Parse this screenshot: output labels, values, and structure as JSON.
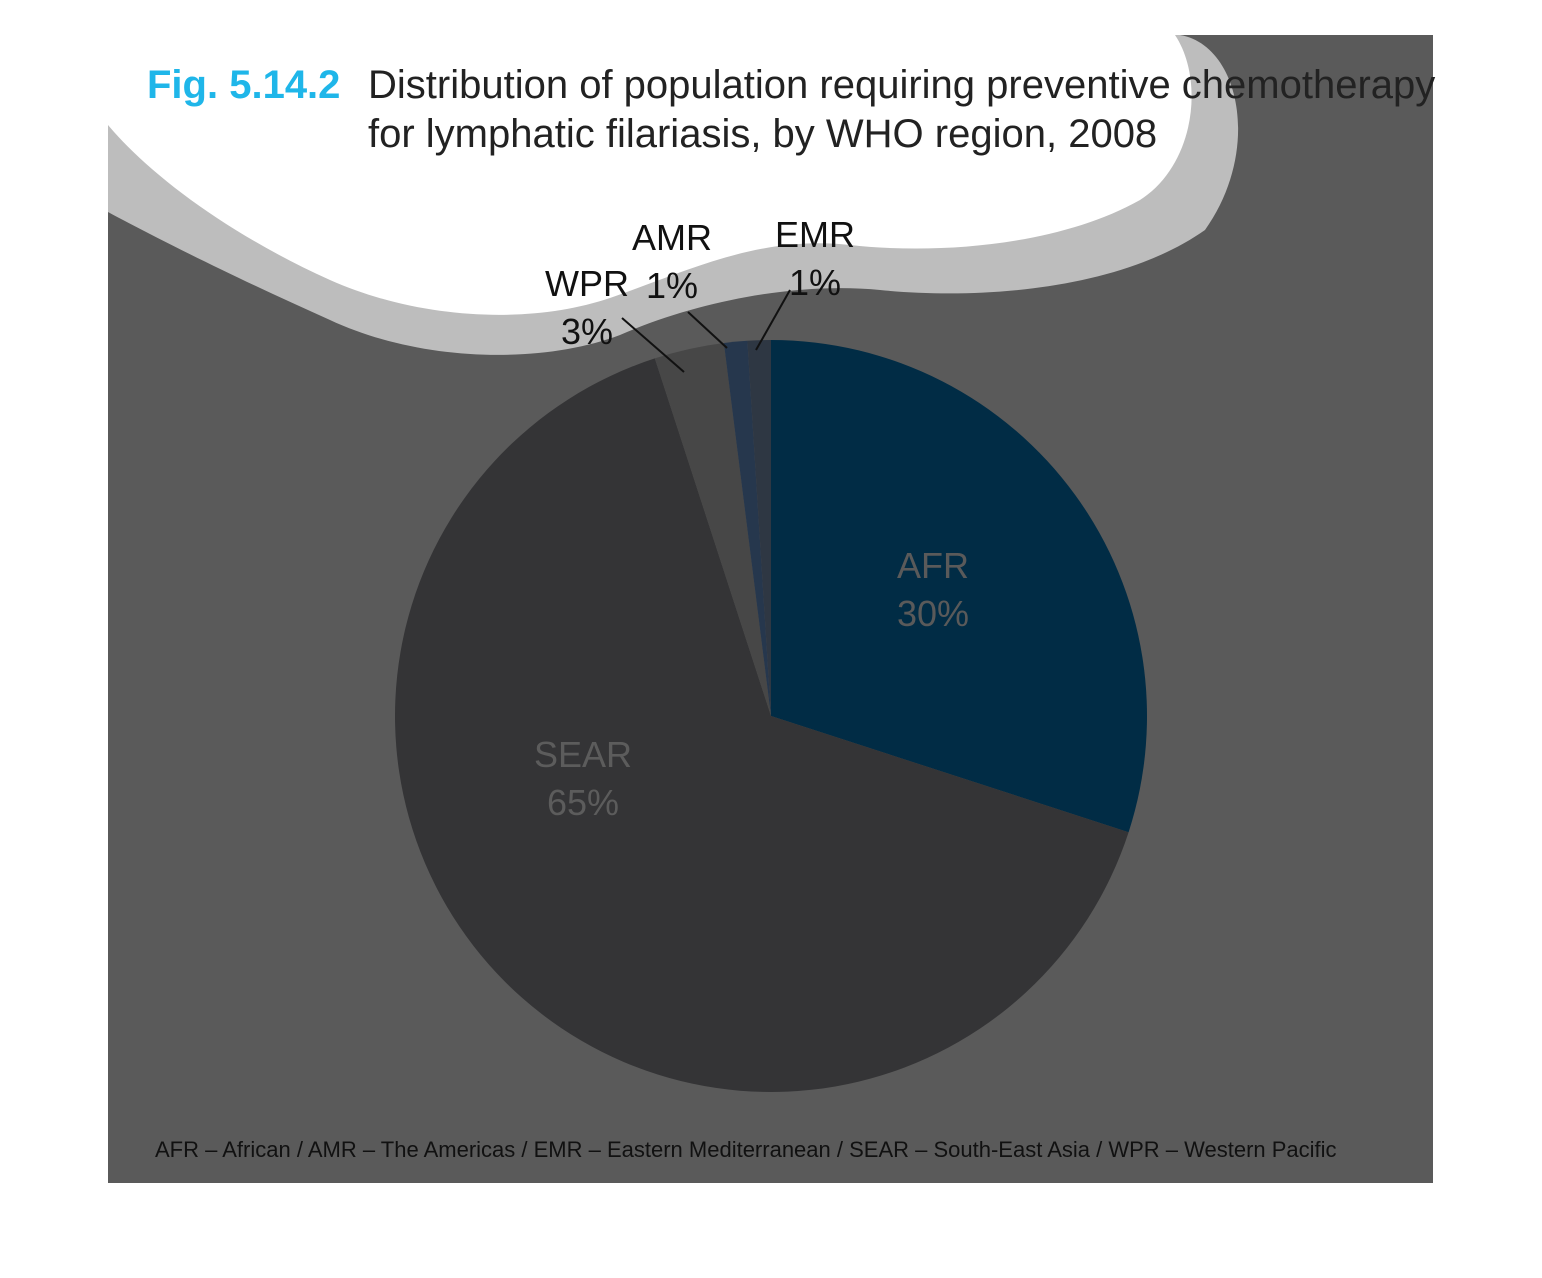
{
  "figure": {
    "number": "Fig. 5.14.2",
    "title_line1": "Distribution of population requiring preventive chemotherapy",
    "title_line2": "for lymphatic filariasis, by WHO region, 2008",
    "footnote": "AFR – African / AMR – The Americas / EMR – Eastern Mediterranean / SEAR – South-East Asia / WPR – Western Pacific"
  },
  "colors": {
    "background_panel": "#5a5a5a",
    "cloud_ring": "#bdbdbd",
    "cloud_fill": "#ffffff",
    "title_accent": "#1fb6e9"
  },
  "chart_data": {
    "type": "pie",
    "title": "Distribution of population requiring preventive chemotherapy for lymphatic filariasis, by WHO region, 2008",
    "start": "12 o'clock, clockwise",
    "slices": [
      {
        "name": "AFR",
        "value": 30,
        "label": "30%",
        "color": "#012c45",
        "label_color": "#5a5a5a"
      },
      {
        "name": "SEAR",
        "value": 65,
        "label": "65%",
        "color": "#343436",
        "label_color": "#5c5c5c"
      },
      {
        "name": "WPR",
        "value": 3,
        "label": "3%",
        "color": "#474747",
        "label_color": "#111111"
      },
      {
        "name": "AMR",
        "value": 1,
        "label": "1%",
        "color": "#26374d",
        "label_color": "#111111"
      },
      {
        "name": "EMR",
        "value": 1,
        "label": "1%",
        "color": "#2e3743",
        "label_color": "#111111"
      }
    ]
  }
}
